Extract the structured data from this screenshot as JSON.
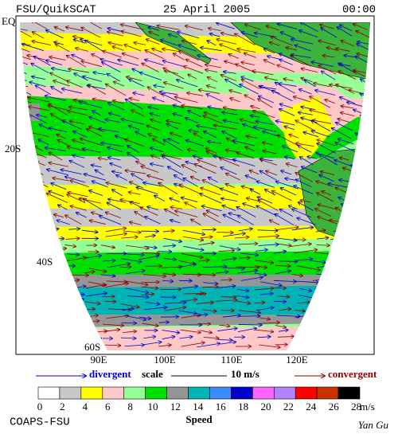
{
  "header": {
    "title": "FSU/QuikSCAT",
    "date": "25 April 2005",
    "time": "00:00"
  },
  "map": {
    "lat_labels": [
      "EQ",
      "20S",
      "40S",
      "60S"
    ],
    "lon_labels": [
      "90E",
      "100E",
      "110E",
      "120E"
    ]
  },
  "legend": {
    "divergent": "divergent",
    "scale": "scale",
    "scale_value": "10 m/s",
    "convergent": "convergent"
  },
  "colorbar": {
    "colors": [
      "#ffffff",
      "#c8c8c8",
      "#ffff00",
      "#ffc8c8",
      "#96ff96",
      "#00e000",
      "#969696",
      "#00b4b4",
      "#3c8cff",
      "#0000c8",
      "#ff64ff",
      "#b482ff",
      "#ff0000",
      "#c83200",
      "#000000"
    ],
    "labels": [
      "0",
      "2",
      "4",
      "6",
      "8",
      "10",
      "12",
      "14",
      "16",
      "18",
      "20",
      "22",
      "24",
      "26",
      "28"
    ],
    "unit": "m/s",
    "title": "Speed"
  },
  "footer": {
    "credit": "COAPS-FSU",
    "author": "Yan Gu"
  }
}
